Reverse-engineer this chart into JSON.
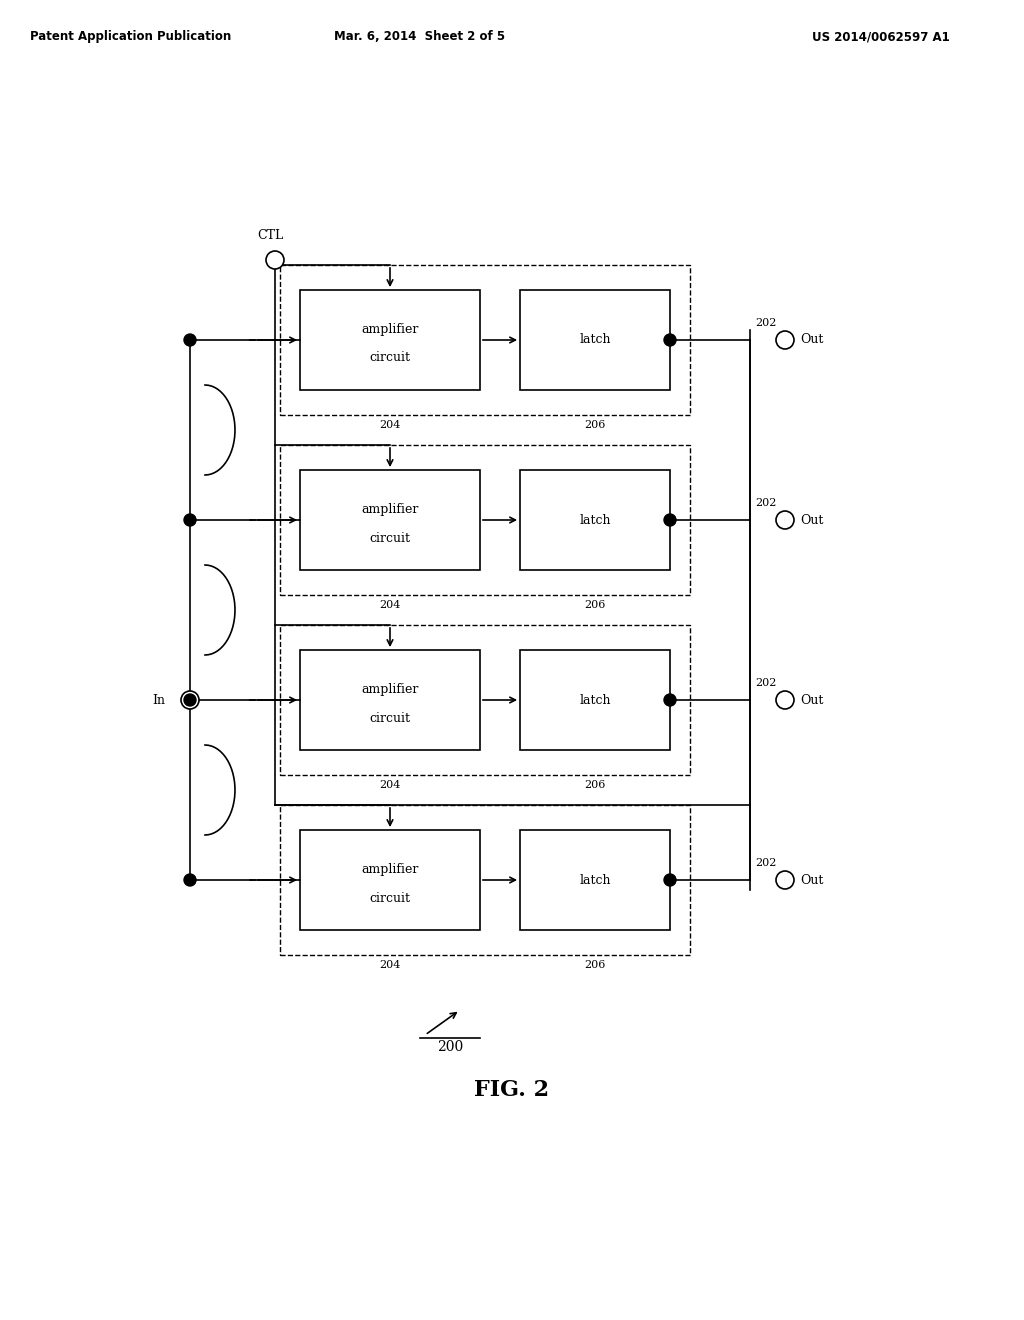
{
  "bg_color": "#ffffff",
  "header_left": "Patent Application Publication",
  "header_mid": "Mar. 6, 2014  Sheet 2 of 5",
  "header_right": "US 2014/0062597 A1",
  "fig_label": "FIG. 2",
  "fig_number": "200",
  "num_stages": 4,
  "stage_labels": [
    "202",
    "202",
    "202",
    "202"
  ],
  "amp_label": "204",
  "latch_label": "206",
  "amp_text_line1": "amplifier",
  "amp_text_line2": "circuit",
  "latch_text": "latch",
  "ctl_label": "CTL",
  "in_label": "In",
  "out_label": "Out"
}
